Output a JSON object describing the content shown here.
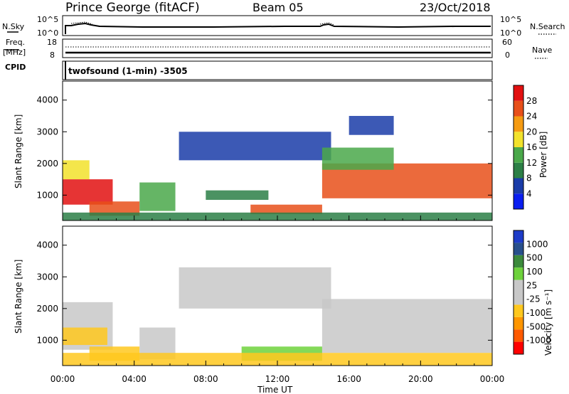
{
  "header": {
    "station": "Prince George (fitACF)",
    "beam": "Beam 05",
    "date": "23/Oct/2018"
  },
  "top_panels": {
    "nsky_label": "N.Sky",
    "nsky_ticks": [
      "10^5",
      "10^0"
    ],
    "nsearch_label": "N.Search",
    "freq_label_1": "Freq.",
    "freq_label_2": "[MHz]",
    "freq_ticks": [
      "18",
      "8"
    ],
    "nave_label": "Nave",
    "nave_ticks": [
      "60",
      "0"
    ],
    "cpid_label": "CPID",
    "cpid_value": "twofsound (1-min) -3505"
  },
  "chart_data": [
    {
      "type": "heatmap",
      "name": "power",
      "ylabel": "Slant Range [km]",
      "xlabel": "",
      "x_ticks": [
        "00:00",
        "04:00",
        "08:00",
        "12:00",
        "16:00",
        "20:00",
        "00:00"
      ],
      "y_ticks": [
        1000,
        2000,
        3000,
        4000
      ],
      "ylim": [
        200,
        4600
      ],
      "colorbar_label": "Power [dB]",
      "colorbar_ticks": [
        "28",
        "24",
        "20",
        "16",
        "12",
        "8",
        "4"
      ],
      "colors": [
        "#0a1ef0",
        "#1a3ca8",
        "#2c7f46",
        "#4aa84a",
        "#f2e22c",
        "#f59b12",
        "#e8501a",
        "#e21010"
      ],
      "regions": [
        {
          "t0": 0.0,
          "t1": 2.8,
          "r0": 700,
          "r1": 1500,
          "level": 7
        },
        {
          "t0": 0.0,
          "t1": 1.5,
          "r0": 1500,
          "r1": 2100,
          "level": 4
        },
        {
          "t0": 1.5,
          "t1": 4.3,
          "r0": 350,
          "r1": 800,
          "level": 6
        },
        {
          "t0": 4.3,
          "t1": 6.3,
          "r0": 500,
          "r1": 1400,
          "level": 3
        },
        {
          "t0": 6.5,
          "t1": 15.0,
          "r0": 2100,
          "r1": 3000,
          "level": 1
        },
        {
          "t0": 8.0,
          "t1": 11.5,
          "r0": 850,
          "r1": 1150,
          "level": 2
        },
        {
          "t0": 10.5,
          "t1": 14.5,
          "r0": 400,
          "r1": 700,
          "level": 6
        },
        {
          "t0": 14.5,
          "t1": 24.0,
          "r0": 900,
          "r1": 2000,
          "level": 6
        },
        {
          "t0": 14.5,
          "t1": 18.5,
          "r0": 1800,
          "r1": 2500,
          "level": 3
        },
        {
          "t0": 16.0,
          "t1": 18.5,
          "r0": 2900,
          "r1": 3500,
          "level": 1
        },
        {
          "t0": 0.0,
          "t1": 24.0,
          "r0": 200,
          "r1": 450,
          "level": 2
        }
      ]
    },
    {
      "type": "heatmap",
      "name": "velocity",
      "ylabel": "Slant Range [km]",
      "xlabel": "Time UT",
      "x_ticks": [
        "00:00",
        "04:00",
        "08:00",
        "12:00",
        "16:00",
        "20:00",
        "00:00"
      ],
      "y_ticks": [
        1000,
        2000,
        3000,
        4000
      ],
      "ylim": [
        200,
        4600
      ],
      "colorbar_label": "Velocity [m s⁻¹]",
      "colorbar_ticks": [
        "1000",
        "500",
        "100",
        "25",
        "-25",
        "-100",
        "-500",
        "-1000"
      ],
      "colors": [
        "#ff0000",
        "#ff5a00",
        "#ff9600",
        "#ffc81e",
        "#c8c8c8",
        "#c8c8c8",
        "#6ed23c",
        "#3c8a3c",
        "#28508c",
        "#1e3cc8"
      ],
      "regions": [
        {
          "t0": 0.0,
          "t1": 2.8,
          "r0": 700,
          "r1": 2200,
          "level": 4
        },
        {
          "t0": 0.0,
          "t1": 2.5,
          "r0": 850,
          "r1": 1400,
          "level": 3
        },
        {
          "t0": 1.5,
          "t1": 4.3,
          "r0": 350,
          "r1": 800,
          "level": 3
        },
        {
          "t0": 4.3,
          "t1": 6.3,
          "r0": 400,
          "r1": 1400,
          "level": 4
        },
        {
          "t0": 6.5,
          "t1": 15.0,
          "r0": 2000,
          "r1": 3300,
          "level": 4
        },
        {
          "t0": 14.5,
          "t1": 24.0,
          "r0": 600,
          "r1": 2300,
          "level": 4
        },
        {
          "t0": 10.0,
          "t1": 14.5,
          "r0": 350,
          "r1": 800,
          "level": 6
        },
        {
          "t0": 0.0,
          "t1": 24.0,
          "r0": 200,
          "r1": 600,
          "level": 3
        }
      ]
    }
  ]
}
